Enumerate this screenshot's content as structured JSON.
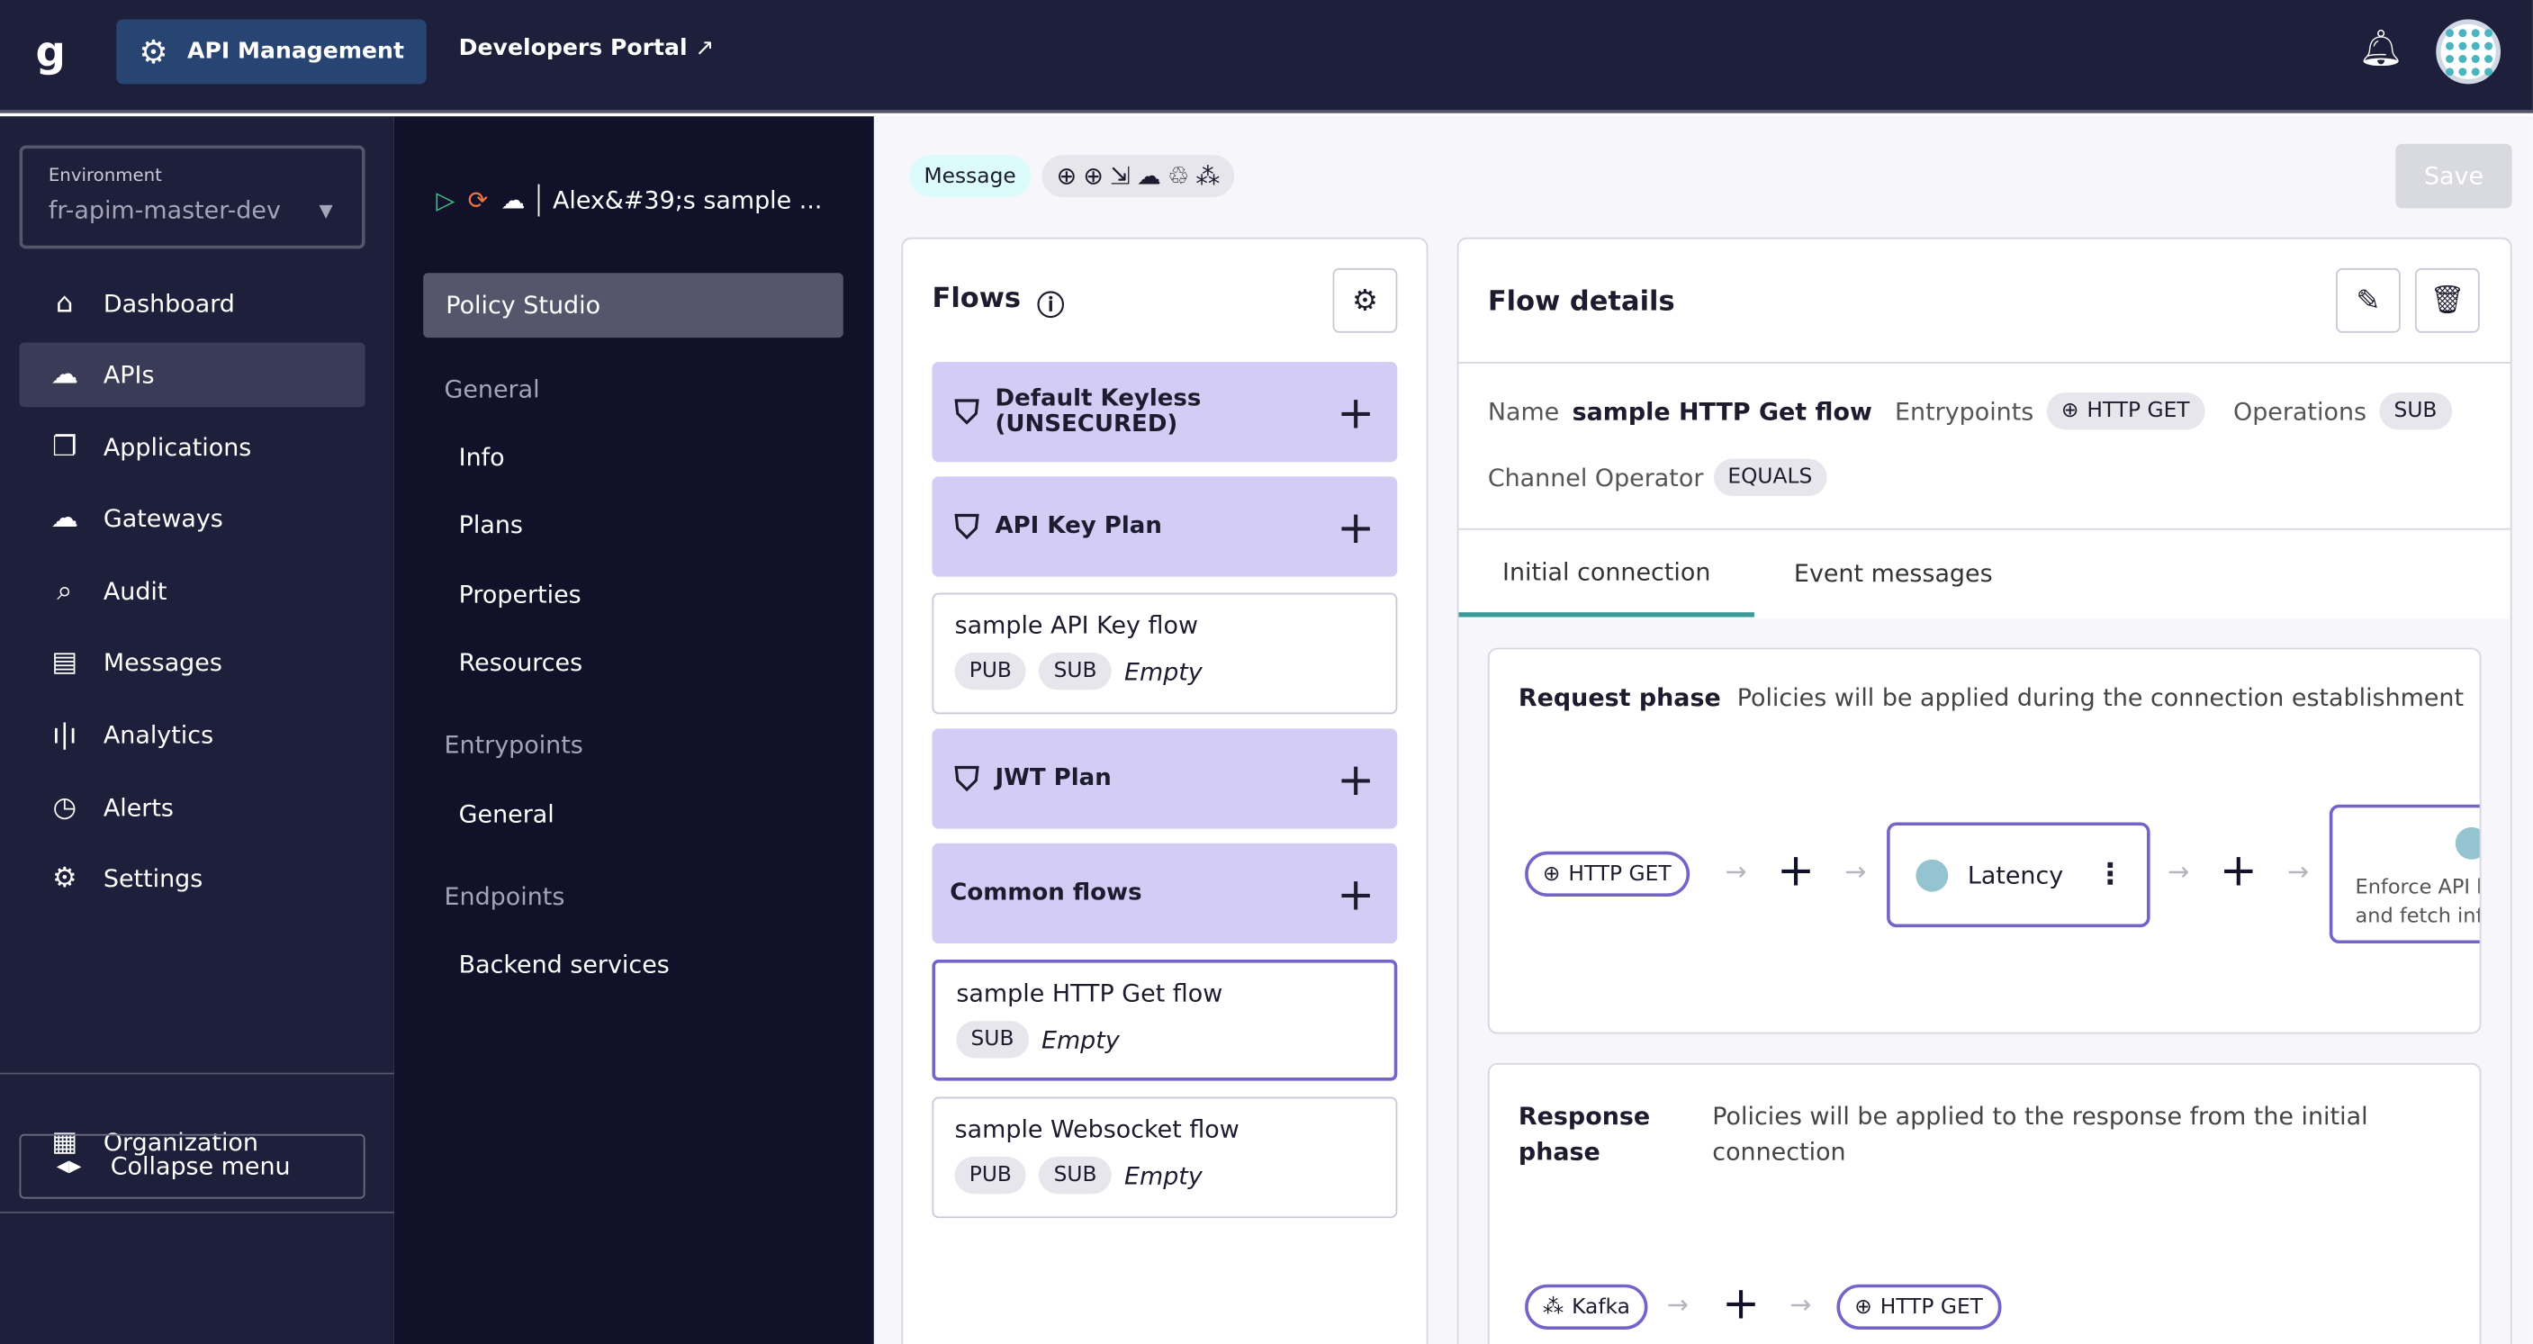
{
  "topbar": {
    "logo": "g",
    "api_management": "API Management",
    "developers_portal": "Developers Portal"
  },
  "environment": {
    "label": "Environment",
    "value": "fr-apim-master-dev"
  },
  "sidebar": {
    "items": [
      {
        "label": "Dashboard",
        "icon": "home-icon"
      },
      {
        "label": "APIs",
        "icon": "cloud-upload-icon"
      },
      {
        "label": "Applications",
        "icon": "applications-icon"
      },
      {
        "label": "Gateways",
        "icon": "gateway-icon"
      },
      {
        "label": "Audit",
        "icon": "audit-icon"
      },
      {
        "label": "Messages",
        "icon": "message-icon"
      },
      {
        "label": "Analytics",
        "icon": "bar-chart-icon"
      },
      {
        "label": "Alerts",
        "icon": "alarm-icon"
      },
      {
        "label": "Settings",
        "icon": "gear-icon"
      }
    ],
    "organization": "Organization",
    "collapse": "Collapse menu"
  },
  "api": {
    "name": "Alex&#39;s sample ...",
    "status_colors": {
      "started": "#3fc98d",
      "sync": "#f07542"
    }
  },
  "submenu": {
    "policy_studio": "Policy Studio",
    "sections": [
      {
        "title": "General",
        "items": [
          "Info",
          "Plans",
          "Properties",
          "Resources"
        ]
      },
      {
        "title": "Entrypoints",
        "items": [
          "General"
        ]
      },
      {
        "title": "Endpoints",
        "items": [
          "Backend services"
        ]
      }
    ]
  },
  "header": {
    "type_badge": "Message",
    "save": "Save"
  },
  "flows": {
    "title": "Flows",
    "plans": [
      {
        "name": "Default Keyless (UNSECURED)",
        "line1": "Default Keyless",
        "line2": "(UNSECURED)"
      },
      {
        "name": "API Key Plan"
      },
      {
        "name": "JWT Plan"
      },
      {
        "name": "Common flows"
      }
    ],
    "items": [
      {
        "name": "sample API Key flow",
        "tags": [
          "PUB",
          "SUB"
        ],
        "empty": "Empty"
      },
      {
        "name": "sample HTTP Get flow",
        "tags": [
          "SUB"
        ],
        "empty": "Empty"
      },
      {
        "name": "sample Websocket flow",
        "tags": [
          "PUB",
          "SUB"
        ],
        "empty": "Empty"
      }
    ]
  },
  "details": {
    "title": "Flow details",
    "name_label": "Name",
    "name": "sample HTTP Get flow",
    "entrypoints_label": "Entrypoints",
    "entrypoint": "HTTP GET",
    "operations_label": "Operations",
    "operation": "SUB",
    "channel_label": "Channel Operator",
    "channel": "EQUALS",
    "tabs": [
      "Initial connection",
      "Event messages"
    ],
    "request": {
      "title": "Request phase",
      "desc": "Policies will be applied during the connection establishment",
      "entry": "HTTP GET",
      "policy": "Latency",
      "policy2_line1": "Enforce API k",
      "policy2_line2": "and fetch info"
    },
    "response": {
      "title_line1": "Response",
      "title_line2": "phase",
      "desc_line1": "Policies will be applied to the response from the initial",
      "desc_line2": "connection",
      "entry": "Kafka",
      "exit": "HTTP GET"
    }
  }
}
